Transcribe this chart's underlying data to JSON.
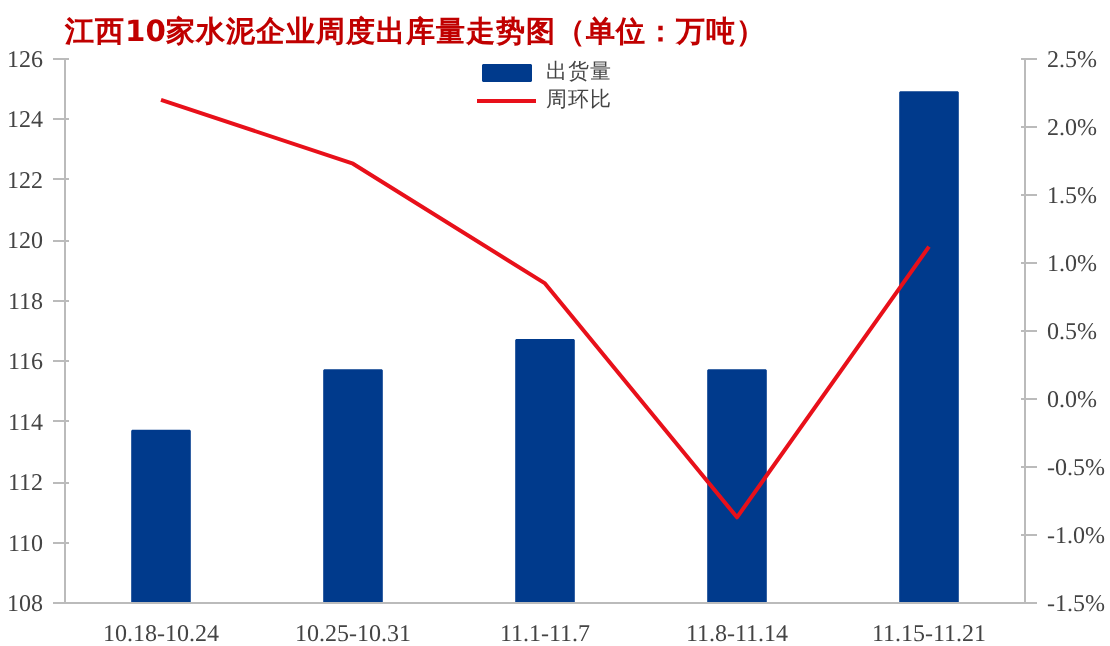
{
  "chart_data": {
    "type": "bar",
    "title": "江西10家水泥企业周度出库量走势图（单位：万吨）",
    "categories": [
      "10.18-10.24",
      "10.25-10.31",
      "11.1-11.7",
      "11.8-11.14",
      "11.15-11.21"
    ],
    "series": [
      {
        "name": "出货量",
        "color": "#003a8c",
        "values": [
          113.7,
          115.7,
          116.7,
          115.7,
          124.9
        ]
      },
      {
        "name": "周环比",
        "type": "line",
        "axis": "y2",
        "color": "#e8101a",
        "values": [
          2.2,
          1.73,
          0.85,
          -0.87,
          1.12
        ]
      }
    ],
    "ylim": [
      108,
      126
    ],
    "yticks": [
      108,
      110,
      112,
      114,
      116,
      118,
      120,
      122,
      124,
      126
    ],
    "y2lim": [
      -1.5,
      2.5
    ],
    "y2ticks": [
      {
        "value": -1.5,
        "label": "-1.5%"
      },
      {
        "value": -1.0,
        "label": "-1.0%"
      },
      {
        "value": -0.5,
        "label": "-0.5%"
      },
      {
        "value": 0.0,
        "label": "0.0%"
      },
      {
        "value": 0.5,
        "label": "0.5%"
      },
      {
        "value": 1.0,
        "label": "1.0%"
      },
      {
        "value": 1.5,
        "label": "1.5%"
      },
      {
        "value": 2.0,
        "label": "2.0%"
      },
      {
        "value": 2.5,
        "label": "2.5%"
      }
    ],
    "legend": "top",
    "grid": false,
    "line_style": "solid",
    "marker": "none"
  }
}
